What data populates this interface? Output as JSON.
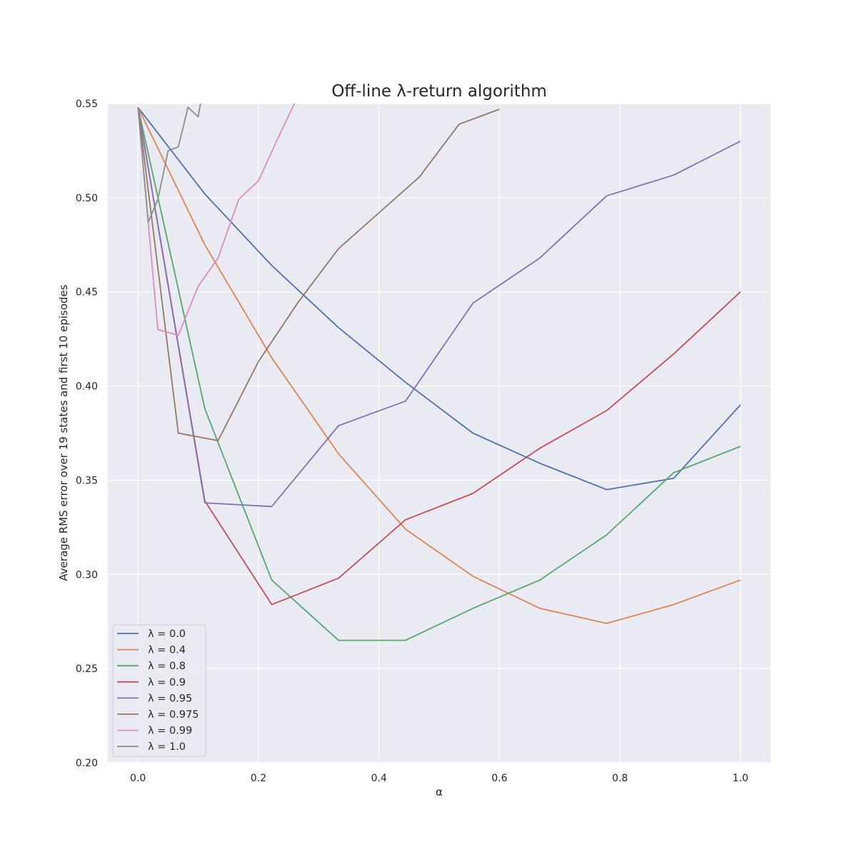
{
  "chart_data": {
    "type": "line",
    "title": "Off-line λ-return algorithm",
    "xlabel": "α",
    "ylabel": "Average RMS error over 19 states and first 10 episodes",
    "xlim": [
      -0.05,
      1.05
    ],
    "ylim": [
      0.2,
      0.55
    ],
    "xticks": [
      "0.0",
      "0.2",
      "0.4",
      "0.6",
      "0.8",
      "1.0"
    ],
    "yticks": [
      "0.20",
      "0.25",
      "0.30",
      "0.35",
      "0.40",
      "0.45",
      "0.50",
      "0.55"
    ],
    "grid": true,
    "legend_position": "lower-left",
    "series": [
      {
        "name": "λ = 0.0",
        "color": "#4c72b0",
        "x": [
          0.0,
          0.111,
          0.222,
          0.333,
          0.444,
          0.556,
          0.667,
          0.778,
          0.889,
          1.0
        ],
        "y": [
          0.548,
          0.502,
          0.464,
          0.431,
          0.402,
          0.375,
          0.359,
          0.345,
          0.351,
          0.39
        ]
      },
      {
        "name": "λ = 0.4",
        "color": "#dd8452",
        "x": [
          0.0,
          0.111,
          0.222,
          0.333,
          0.444,
          0.556,
          0.667,
          0.778,
          0.889,
          1.0
        ],
        "y": [
          0.548,
          0.475,
          0.415,
          0.364,
          0.324,
          0.299,
          0.282,
          0.274,
          0.284,
          0.297
        ]
      },
      {
        "name": "λ = 0.8",
        "color": "#55a868",
        "x": [
          0.0,
          0.111,
          0.222,
          0.333,
          0.444,
          0.556,
          0.667,
          0.778,
          0.889,
          1.0
        ],
        "y": [
          0.548,
          0.388,
          0.297,
          0.265,
          0.265,
          0.282,
          0.297,
          0.321,
          0.354,
          0.368
        ]
      },
      {
        "name": "λ = 0.9",
        "color": "#c44e52",
        "x": [
          0.0,
          0.111,
          0.222,
          0.333,
          0.444,
          0.556,
          0.667,
          0.778,
          0.889,
          1.0
        ],
        "y": [
          0.548,
          0.339,
          0.284,
          0.298,
          0.329,
          0.343,
          0.367,
          0.387,
          0.417,
          0.45
        ]
      },
      {
        "name": "λ = 0.95",
        "color": "#8172b3",
        "x": [
          0.0,
          0.111,
          0.222,
          0.333,
          0.444,
          0.556,
          0.667,
          0.778,
          0.889,
          1.0
        ],
        "y": [
          0.548,
          0.338,
          0.336,
          0.379,
          0.392,
          0.444,
          0.468,
          0.501,
          0.512,
          0.53
        ]
      },
      {
        "name": "λ = 0.975",
        "color": "#937860",
        "x": [
          0.0,
          0.067,
          0.133,
          0.2,
          0.267,
          0.333,
          0.4,
          0.467,
          0.533,
          0.6
        ],
        "y": [
          0.548,
          0.375,
          0.371,
          0.413,
          0.445,
          0.473,
          0.492,
          0.511,
          0.539,
          0.547
        ]
      },
      {
        "name": "λ = 0.99",
        "color": "#da8bc3",
        "x": [
          0.0,
          0.033,
          0.067,
          0.1,
          0.133,
          0.167,
          0.2,
          0.233,
          0.267
        ],
        "y": [
          0.548,
          0.43,
          0.427,
          0.453,
          0.468,
          0.499,
          0.509,
          0.532,
          0.555
        ]
      },
      {
        "name": "λ = 1.0",
        "color": "#8c8c8c",
        "x": [
          0.0,
          0.017,
          0.033,
          0.05,
          0.067,
          0.083,
          0.1,
          0.117
        ],
        "y": [
          0.548,
          0.487,
          0.499,
          0.525,
          0.527,
          0.548,
          0.543,
          0.575
        ]
      }
    ]
  }
}
